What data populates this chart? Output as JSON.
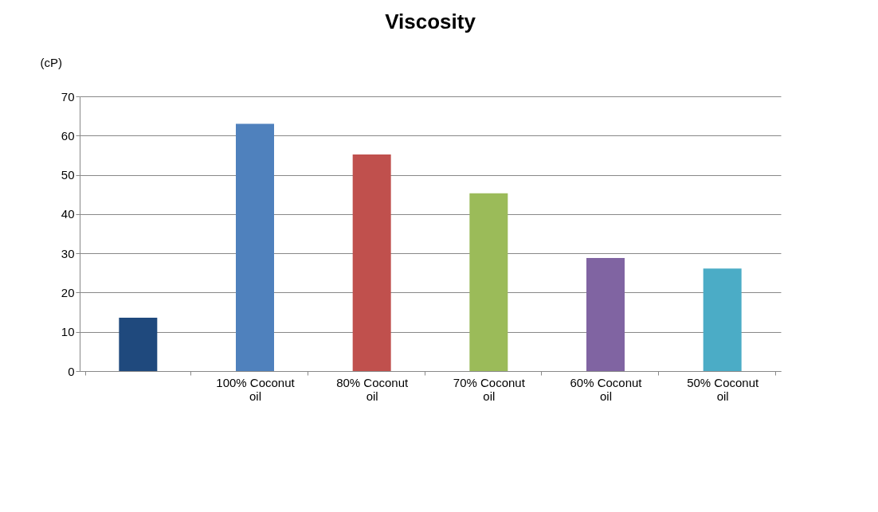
{
  "chart_data": {
    "type": "bar",
    "title": "Viscosity",
    "ylabel": "(cP)",
    "categories": [
      null,
      "100% Coconut oil",
      "80% Coconut oil",
      "70% Coconut oil",
      "60% Coconut oil",
      "50% Coconut oil"
    ],
    "values": [
      13.6,
      63,
      55.2,
      45.3,
      28.8,
      26.1
    ],
    "colors": [
      "#1f497d",
      "#4f81bd",
      "#c0504d",
      "#9bbb59",
      "#8064a2",
      "#4bacc6"
    ],
    "ylim": [
      0,
      70
    ],
    "yticks": [
      0,
      10,
      20,
      30,
      40,
      50,
      60,
      70
    ],
    "grid": "y"
  }
}
